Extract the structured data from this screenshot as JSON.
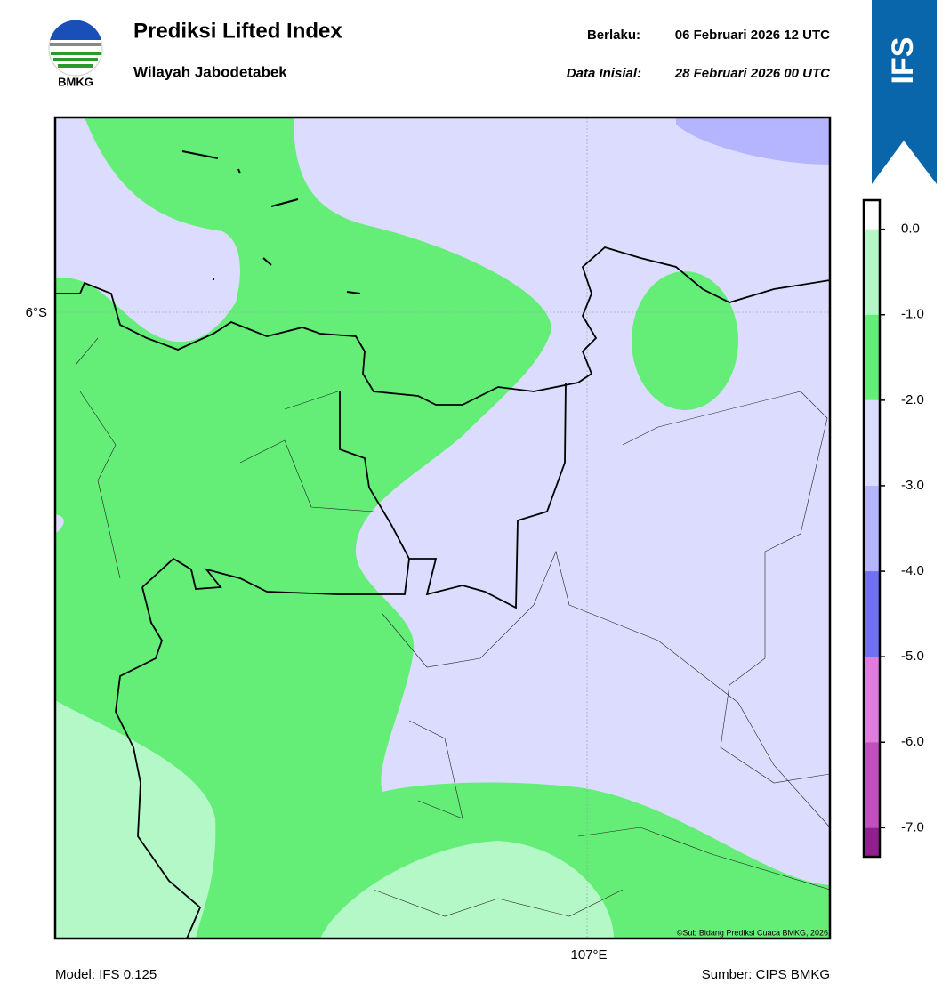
{
  "header": {
    "title": "Prediksi Lifted Index",
    "subtitle": "Wilayah Jabodetabek",
    "valid_label": "Berlaku:",
    "valid_time": "06 Februari 2026 12 UTC",
    "init_label": "Data Inisial:",
    "init_time": "28 Februari 2026 00 UTC",
    "logo_text": "BMKG",
    "badge": "IFS"
  },
  "map": {
    "lat_label": "6°S",
    "lon_label": "107°E",
    "credit": "©Sub Bidang Prediksi Cuaca BMKG, 2026"
  },
  "colorbar": {
    "range": [
      -7.34,
      0.34
    ],
    "ticks": [
      {
        "value": 0,
        "label": "0.0"
      },
      {
        "value": -1,
        "label": "-1.0"
      },
      {
        "value": -2,
        "label": "-2.0"
      },
      {
        "value": -3,
        "label": "-3.0"
      },
      {
        "value": -4,
        "label": "-4.0"
      },
      {
        "value": -5,
        "label": "-5.0"
      },
      {
        "value": -6,
        "label": "-6.0"
      },
      {
        "value": -7,
        "label": "-7.0"
      }
    ],
    "colors": [
      "#ffffff",
      "#b4f8c8",
      "#64ee78",
      "#dcdcff",
      "#b4b4ff",
      "#7070f0",
      "#e07ce0",
      "#c050c0",
      "#902090"
    ]
  },
  "footer": {
    "model": "Model: IFS 0.125",
    "source": "Sumber: CIPS BMKG"
  }
}
